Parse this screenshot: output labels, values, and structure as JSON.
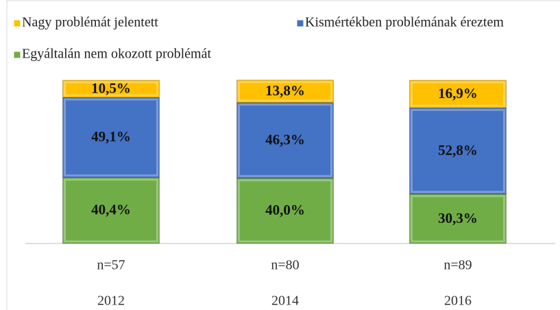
{
  "chart_data": {
    "type": "stacked_bar",
    "categories": [
      "2012",
      "2014",
      "2016"
    ],
    "sample_sizes": [
      "n=57",
      "n=80",
      "n=89"
    ],
    "series": [
      {
        "name": "Nagy problémát jelentett",
        "color": "#ffc000",
        "values": [
          10.5,
          13.8,
          16.9
        ],
        "value_labels": [
          "10,5%",
          "13,8%",
          "16,9%"
        ]
      },
      {
        "name": "Kismértékben problémának éreztem",
        "color": "#4472c4",
        "values": [
          49.1,
          46.3,
          52.8
        ],
        "value_labels": [
          "49,1%",
          "46,3%",
          "52,8%"
        ]
      },
      {
        "name": "Egyáltalán nem okozott problémát",
        "color": "#70ad47",
        "values": [
          40.4,
          40.0,
          30.3
        ],
        "value_labels": [
          "40,4%",
          "40,0%",
          "30,3%"
        ]
      }
    ],
    "ylim": [
      0,
      100
    ]
  }
}
